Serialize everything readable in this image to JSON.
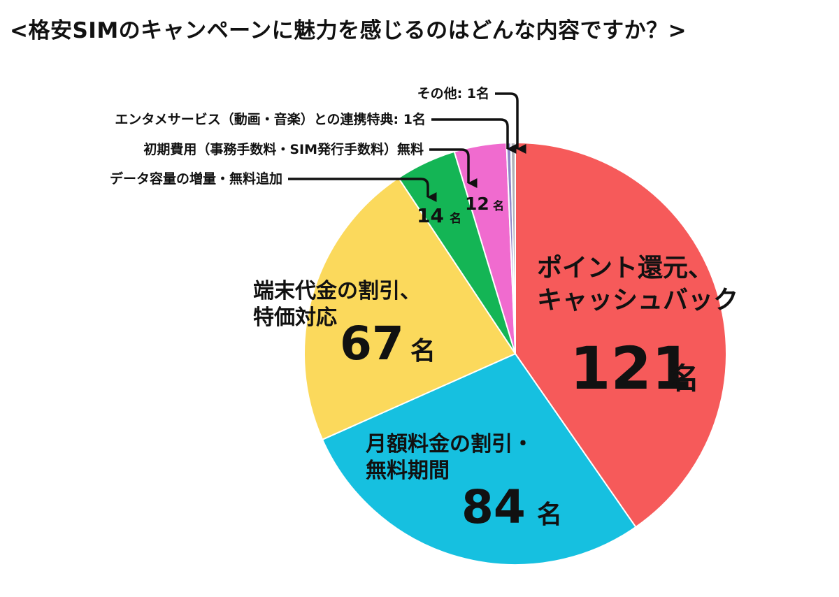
{
  "title": "<格安SIMのキャンペーンに魅力を感じるのはどんな内容ですか？>",
  "chart_data": {
    "type": "pie",
    "title": "<格安SIMのキャンペーンに魅力を感じるのはどんな内容ですか？>",
    "unit": "名",
    "categories": [
      "ポイント還元、キャッシュバック",
      "月額料金の割引・無料期間",
      "端末代金の割引、特価対応",
      "データ容量の増量・無料追加",
      "初期費用（事務手数料・SIM発行手数料）無料",
      "エンタメサービス（動画・音楽）との連携特典",
      "その他"
    ],
    "values": [
      121,
      84,
      67,
      14,
      12,
      1,
      1
    ],
    "colors": [
      "#f65a5a",
      "#16c0e0",
      "#fbd95c",
      "#14b555",
      "#f06bcf",
      "#8f86c8",
      "#b0b0b8"
    ],
    "slice_labels": [
      {
        "lines": [
          "ポイント還元、",
          "キャッシュバック"
        ],
        "value": "121",
        "unit": "名"
      },
      {
        "lines": [
          "月額料金の割引・",
          "無料期間"
        ],
        "value": "84",
        "unit": "名"
      },
      {
        "lines": [
          "端末代金の割引、",
          "特価対応"
        ],
        "value": "67",
        "unit": "名"
      },
      {
        "lines": [],
        "value": "14",
        "unit": "名"
      },
      {
        "lines": [],
        "value": "12",
        "unit": "名"
      }
    ],
    "callouts": [
      "データ容量の増量・無料追加",
      "初期費用（事務手数料・SIM発行手数料）無料",
      "エンタメサービス（動画・音楽）との連携特典: 1名",
      "その他: 1名"
    ]
  }
}
